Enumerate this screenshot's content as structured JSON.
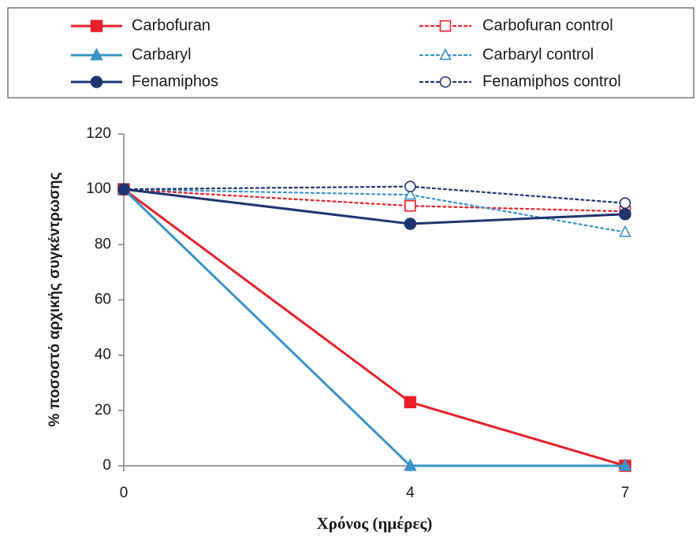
{
  "chart_data": {
    "type": "line",
    "x": [
      0,
      4,
      7
    ],
    "xticks": [
      "0",
      "4",
      "7"
    ],
    "yticks": [
      "0",
      "20",
      "40",
      "60",
      "80",
      "100",
      "120"
    ],
    "ylim": [
      0,
      120
    ],
    "xlabel": "Χρόνος (ημέρες)",
    "ylabel": "% ποσοστό αρχικής συγκέντρωσης",
    "legend_position": "top",
    "grid": false,
    "series": [
      {
        "name": "Carbofuran",
        "values": [
          100,
          23,
          0
        ],
        "color": "#e8202a",
        "line": "solid",
        "marker": "square",
        "filled": true
      },
      {
        "name": "Carbaryl",
        "values": [
          100,
          0,
          0
        ],
        "color": "#3a93c9",
        "line": "solid",
        "marker": "triangle",
        "filled": true
      },
      {
        "name": "Fenamiphos",
        "values": [
          100,
          87.5,
          91
        ],
        "color": "#1f3470",
        "line": "solid",
        "marker": "circle",
        "filled": true
      },
      {
        "name": "Carbofuran control",
        "values": [
          100,
          94,
          92
        ],
        "color": "#e8202a",
        "line": "dotted",
        "marker": "square",
        "filled": false
      },
      {
        "name": "Carbaryl control",
        "values": [
          100,
          98,
          84.5
        ],
        "color": "#3a93c9",
        "line": "dotted",
        "marker": "triangle",
        "filled": false
      },
      {
        "name": "Fenamiphos control",
        "values": [
          100,
          101,
          95
        ],
        "color": "#1f3470",
        "line": "dotted",
        "marker": "circle",
        "filled": false
      }
    ]
  }
}
